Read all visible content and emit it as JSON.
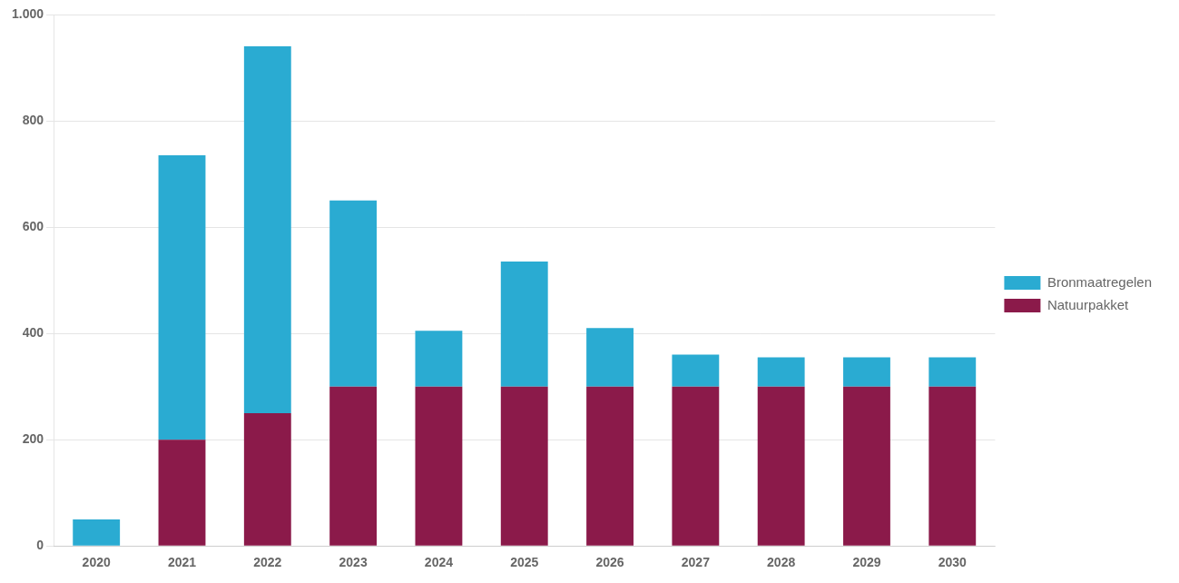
{
  "chart_data": {
    "type": "bar",
    "categories": [
      "2020",
      "2021",
      "2022",
      "2023",
      "2024",
      "2025",
      "2026",
      "2027",
      "2028",
      "2029",
      "2030"
    ],
    "series": [
      {
        "name": "Natuurpakket",
        "color": "#8B1A4A",
        "values": [
          0,
          200,
          250,
          300,
          300,
          300,
          300,
          300,
          300,
          300,
          300
        ]
      },
      {
        "name": "Bronmaatregelen",
        "color": "#2aabd2",
        "values": [
          50,
          535,
          690,
          350,
          105,
          235,
          110,
          60,
          55,
          55,
          55
        ]
      }
    ],
    "stacked": true,
    "ylim": [
      0,
      1000
    ],
    "yticks": [
      0,
      200,
      400,
      600,
      800,
      {
        "value": 1000,
        "label": "1.000"
      }
    ],
    "grid": true,
    "legend": "right"
  }
}
